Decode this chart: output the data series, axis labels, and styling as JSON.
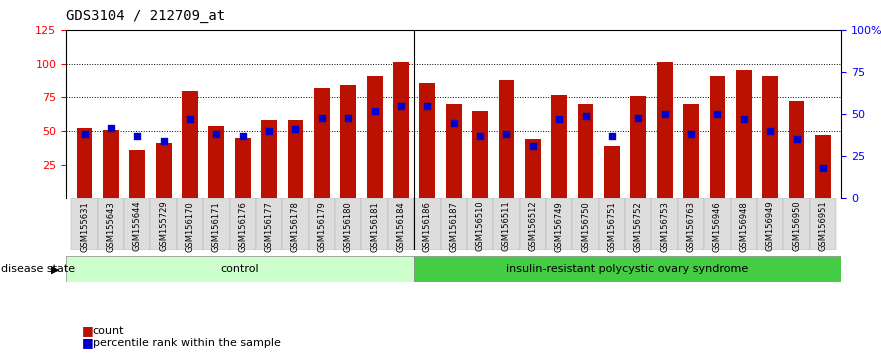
{
  "title": "GDS3104 / 212709_at",
  "samples": [
    "GSM155631",
    "GSM155643",
    "GSM155644",
    "GSM155729",
    "GSM156170",
    "GSM156171",
    "GSM156176",
    "GSM156177",
    "GSM156178",
    "GSM156179",
    "GSM156180",
    "GSM156181",
    "GSM156184",
    "GSM156186",
    "GSM156187",
    "GSM156510",
    "GSM156511",
    "GSM156512",
    "GSM156749",
    "GSM156750",
    "GSM156751",
    "GSM156752",
    "GSM156753",
    "GSM156763",
    "GSM156946",
    "GSM156948",
    "GSM156949",
    "GSM156950",
    "GSM156951"
  ],
  "counts": [
    52,
    51,
    36,
    41,
    80,
    54,
    45,
    58,
    58,
    82,
    84,
    91,
    101,
    86,
    70,
    65,
    88,
    44,
    77,
    70,
    39,
    76,
    101,
    70,
    91,
    95,
    91,
    72,
    47
  ],
  "percentiles": [
    38,
    42,
    37,
    34,
    47,
    38,
    37,
    40,
    41,
    48,
    48,
    52,
    55,
    55,
    45,
    37,
    38,
    31,
    47,
    49,
    37,
    48,
    50,
    38,
    50,
    47,
    40,
    35,
    18
  ],
  "n_control": 13,
  "group_labels": [
    "control",
    "insulin-resistant polycystic ovary syndrome"
  ],
  "ctrl_color": "#ccffcc",
  "pcos_color": "#44cc44",
  "bar_color": "#bb1100",
  "dot_color": "#0000cc",
  "left_ylim": [
    0,
    125
  ],
  "right_ylim": [
    0,
    100
  ],
  "left_yticks": [
    25,
    50,
    75,
    100,
    125
  ],
  "right_yticks": [
    0,
    25,
    50,
    75,
    100
  ],
  "right_yticklabels": [
    "0",
    "25",
    "50",
    "75",
    "100%"
  ],
  "hgrid_at": [
    50,
    75,
    100
  ],
  "bg_color": "#ffffff",
  "title_fontsize": 10,
  "legend_count": "count",
  "legend_pct": "percentile rank within the sample"
}
